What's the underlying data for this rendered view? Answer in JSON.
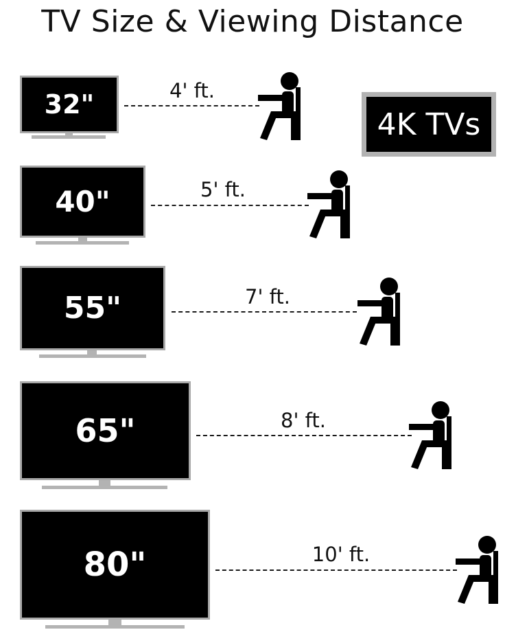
{
  "title": "TV Size & Viewing Distance",
  "badge": "4K TVs",
  "colors": {
    "screen": "#000000",
    "bezel": "#a9a9a9",
    "stand": "#b3b3b3",
    "text": "#111111"
  },
  "icons": {
    "viewer": "seated-person-icon"
  },
  "tvs": [
    {
      "size": "32\"",
      "distance": "4' ft."
    },
    {
      "size": "40\"",
      "distance": "5' ft."
    },
    {
      "size": "55\"",
      "distance": "7' ft."
    },
    {
      "size": "65\"",
      "distance": "8' ft."
    },
    {
      "size": "80\"",
      "distance": "10' ft."
    }
  ]
}
